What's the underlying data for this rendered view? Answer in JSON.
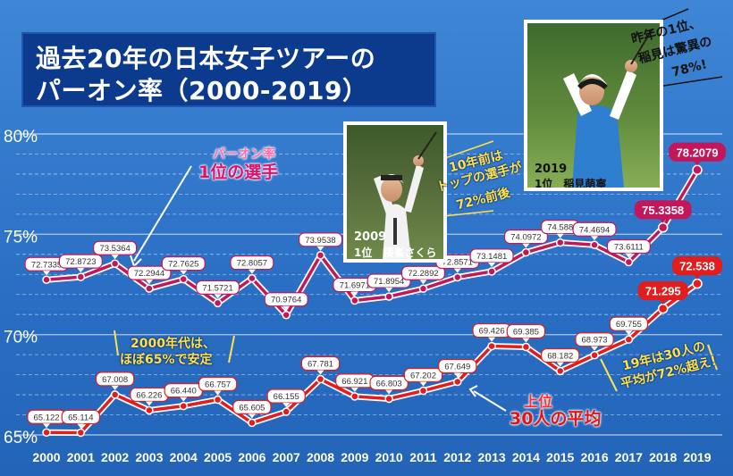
{
  "title": {
    "line1": "過去20年の日本女子ツアーの",
    "line2": "パーオン率（2000-2019）"
  },
  "colors": {
    "background": "#2f78cc",
    "top_series": "#c2185b",
    "top30_series": "#e11d1d",
    "note_yellow": "#ffe24a",
    "title_box": "#0c3a8c"
  },
  "chart_data": {
    "type": "line",
    "x": [
      2000,
      2001,
      2002,
      2003,
      2004,
      2005,
      2006,
      2007,
      2008,
      2009,
      2010,
      2011,
      2012,
      2013,
      2014,
      2015,
      2016,
      2017,
      2018,
      2019
    ],
    "ylim": [
      65,
      80
    ],
    "yticks": [
      65,
      70,
      75,
      80
    ],
    "ytick_labels": [
      "65%",
      "70%",
      "75%",
      "80%"
    ],
    "grid": true,
    "series": [
      {
        "name": "パーオン率 1位の選手",
        "values": [
          72.7335,
          72.8723,
          73.5364,
          72.2944,
          72.7625,
          71.5721,
          72.8057,
          70.9764,
          73.9538,
          71.6971,
          71.8954,
          72.2892,
          72.8571,
          73.1481,
          74.0972,
          74.588,
          74.4694,
          73.6111,
          75.3358,
          78.2079
        ],
        "labels": [
          "72.7335",
          "72.8723",
          "73.5364",
          "72.2944",
          "72.7625",
          "71.5721",
          "72.8057",
          "70.9764",
          "73.9538",
          "71.6971",
          "71.8954",
          "72.2892",
          "72.8571",
          "73.1481",
          "74.0972",
          "74.588",
          "74.4694",
          "73.6111",
          "75.3358",
          "78.2079"
        ]
      },
      {
        "name": "上位30人の平均",
        "values": [
          65.122,
          65.114,
          67.008,
          66.226,
          66.44,
          66.757,
          65.605,
          66.155,
          67.781,
          66.921,
          66.803,
          67.202,
          67.649,
          69.426,
          69.385,
          68.182,
          68.973,
          69.755,
          71.295,
          72.538
        ],
        "labels": [
          "65.122",
          "65.114",
          "67.008",
          "66.226",
          "66.440",
          "66.757",
          "65.605",
          "66.155",
          "67.781",
          "66.921",
          "66.803",
          "67.202",
          "67.649",
          "69.426",
          "69.385",
          "68.182",
          "68.973",
          "69.755",
          "71.295",
          "72.538"
        ]
      }
    ],
    "annotations": {
      "top_label_1": "パーオン率",
      "top_label_2": "1位の選手",
      "avg_label_1": "上位",
      "avg_label_2": "30人の平均",
      "note_2000s_1": "2000年代は、",
      "note_2000s_2": "ほぼ65%で安定",
      "note_2019_1": "19年は30人の",
      "note_2019_2": "平均が72%超え!",
      "note_2009_1": "10年前は",
      "note_2009_2": "トップの選手が",
      "note_2009_3": "72%前後",
      "note_lastyear_1": "昨年の1位、",
      "note_lastyear_2": "稲見は驚異の",
      "note_lastyear_3": "78%!"
    }
  },
  "photos": {
    "p2009": {
      "year": "2009",
      "caption": "1位　横峯さくら"
    },
    "p2019": {
      "year": "2019",
      "caption": "1位　稲見萌寧"
    }
  }
}
